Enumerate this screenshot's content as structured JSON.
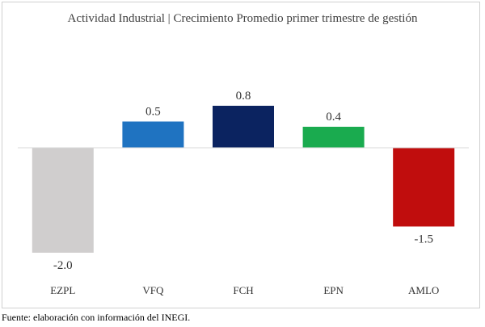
{
  "chart_data": {
    "type": "bar",
    "title": "Actividad Industrial |  Crecimiento Promedio primer trimestre de gestión",
    "categories": [
      "EZPL",
      "VFQ",
      "FCH",
      "EPN",
      "AMLO"
    ],
    "values": [
      -2.0,
      0.5,
      0.8,
      0.4,
      -1.5
    ],
    "value_labels": [
      "-2.0",
      "0.5",
      "0.8",
      "0.4",
      "-1.5"
    ],
    "colors": [
      "#d0cece",
      "#1f73c1",
      "#0b2360",
      "#1aab4f",
      "#c00d0d"
    ],
    "xlabel": "",
    "ylabel": "",
    "ylim": [
      -2.0,
      0.8
    ],
    "grid": false,
    "legend": "none"
  },
  "source": "Fuente: elaboración con información del INEGI."
}
